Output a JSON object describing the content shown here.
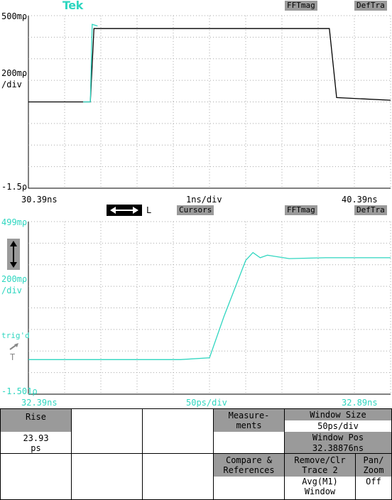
{
  "brand": "Tek",
  "colors": {
    "cyan": "#2fd6c0",
    "grid": "#a8a8a8",
    "gray_label": "#9a9a9a",
    "trace_dark": "#000000"
  },
  "top_panel": {
    "top_label": "500mρ",
    "mid_label": "200mρ",
    "div_label": "/div",
    "bottom_label": "-1.5ρ",
    "tags": [
      "FFTmag",
      "DefTra"
    ],
    "x_left": "30.39ns",
    "x_center": "1ns/div",
    "x_right": "40.39ns"
  },
  "separator": {
    "icon": "horizontal-arrows-icon",
    "L": "L",
    "tags": [
      "Cursors",
      "FFTmag",
      "DefTra"
    ]
  },
  "bottom_panel": {
    "top_label": "499mρ",
    "mid_label": "200mρ",
    "div_label": "/div",
    "bottom_label": "-1.501ρ",
    "trigd": "trig'd",
    "trigger_T": "T",
    "x_left": "32.39ns",
    "x_center": "50ps/div",
    "x_right": "32.89ns"
  },
  "chart_data": [
    {
      "type": "line",
      "series": [
        {
          "color": "#000000",
          "x": [
            30.39,
            31.9,
            32.1,
            32.2,
            34.6,
            38.7,
            38.9,
            40.39
          ],
          "y": [
            -0.5,
            -0.5,
            -0.5,
            0.35,
            0.35,
            0.35,
            -0.45,
            -0.48
          ]
        },
        {
          "color": "#2fd6c0",
          "x": [
            31.9,
            32.1,
            32.15,
            32.3
          ],
          "y": [
            -0.5,
            -0.5,
            0.4,
            0.38
          ]
        }
      ],
      "xlim": [
        30.39,
        40.39
      ],
      "ylim": [
        -1.5,
        0.5
      ]
    },
    {
      "type": "line",
      "series": [
        {
          "color": "#2fd6c0",
          "x": [
            32.39,
            32.6,
            32.64,
            32.66,
            32.69,
            32.7,
            32.71,
            32.72,
            32.75,
            32.8,
            32.89
          ],
          "y": [
            -1.1,
            -1.1,
            -1.08,
            -0.6,
            0.05,
            0.14,
            0.08,
            0.11,
            0.07,
            0.08,
            0.08
          ]
        }
      ],
      "xlim": [
        32.39,
        32.89
      ],
      "ylim": [
        -1.501,
        0.499
      ]
    }
  ],
  "menu": {
    "rise_header": "Rise",
    "rise_value": "23.93",
    "rise_unit": "ps",
    "measurements": "Measure-\nments",
    "window_size_header": "Window Size",
    "window_size_value": "50ps/div",
    "window_pos_header": "Window Pos",
    "window_pos_value": "32.38876ns",
    "compare": "Compare &\nReferences",
    "remove_header": "Remove/Clr\nTrace 2",
    "remove_value": "Avg(M1)\nWindow",
    "panzoom_header": "Pan/\nZoom",
    "panzoom_value": "Off"
  }
}
